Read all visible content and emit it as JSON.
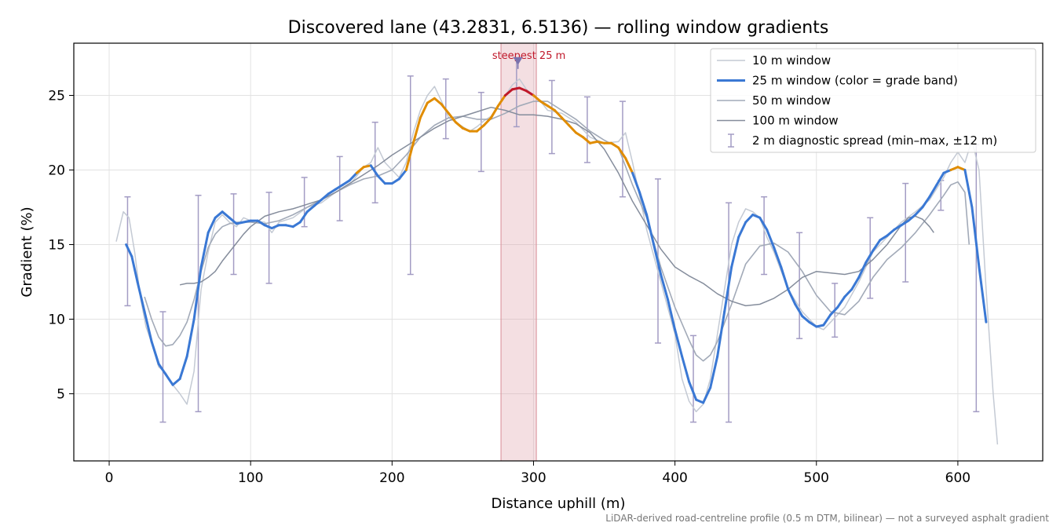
{
  "chart_data": {
    "type": "line",
    "title": "Discovered lane (43.2831, 6.5136) — rolling window gradients",
    "xlabel": "Distance uphill (m)",
    "ylabel": "Gradient (%)",
    "xlim": [
      -25,
      660
    ],
    "ylim": [
      0.5,
      28.5
    ],
    "x_ticks": [
      0,
      100,
      200,
      300,
      400,
      500,
      600
    ],
    "y_ticks": [
      5,
      10,
      15,
      20,
      25
    ],
    "grid": true,
    "legend_position": "top-right",
    "footnote": "LiDAR-derived road-centreline profile (0.5 m DTM, bilinear) — not a surveyed asphalt gradient",
    "highlight": {
      "label": "steepest 25 m",
      "x_range": [
        277,
        302
      ],
      "marker": {
        "x": 289,
        "y": 27.3
      }
    },
    "grade_band_colors": {
      "below_20": "#3a78d4",
      "20_to_25": "#e08c00",
      "above_25": "#c0182a"
    },
    "series": [
      {
        "name": "10 m window",
        "color": "#c4cad4",
        "x": [
          5,
          10,
          14,
          18,
          22,
          26,
          30,
          35,
          40,
          45,
          50,
          55,
          60,
          65,
          70,
          75,
          80,
          85,
          90,
          95,
          100,
          110,
          115,
          120,
          130,
          140,
          150,
          160,
          170,
          180,
          185,
          190,
          195,
          200,
          205,
          210,
          215,
          220,
          225,
          230,
          235,
          240,
          245,
          250,
          255,
          260,
          265,
          270,
          275,
          280,
          285,
          290,
          295,
          300,
          305,
          310,
          320,
          330,
          340,
          350,
          360,
          365,
          370,
          380,
          390,
          400,
          405,
          410,
          415,
          420,
          425,
          430,
          440,
          445,
          450,
          455,
          460,
          465,
          470,
          480,
          490,
          500,
          505,
          510,
          520,
          530,
          540,
          550,
          560,
          570,
          580,
          590,
          595,
          600,
          605,
          610,
          615,
          620,
          625,
          628
        ],
        "y": [
          15.2,
          17.2,
          16.8,
          14.5,
          11.5,
          9.5,
          8.4,
          6.8,
          6.4,
          5.6,
          5.0,
          4.3,
          6.5,
          12.0,
          14.5,
          16.5,
          17.0,
          16.5,
          16.2,
          16.8,
          16.6,
          16.5,
          15.8,
          16.5,
          16.8,
          17.5,
          17.8,
          18.5,
          19.0,
          20.2,
          20.5,
          21.5,
          20.5,
          20.0,
          19.5,
          20.5,
          22.5,
          24.0,
          25.0,
          25.6,
          24.6,
          23.5,
          23.2,
          22.9,
          22.6,
          22.9,
          23.3,
          23.6,
          24.3,
          25.0,
          25.7,
          26.1,
          25.4,
          25.0,
          24.6,
          24.0,
          23.8,
          23.2,
          22.2,
          21.8,
          21.9,
          22.5,
          20.5,
          16.0,
          12.5,
          9.0,
          6.0,
          4.5,
          3.8,
          4.3,
          6.0,
          9.0,
          15.0,
          16.5,
          17.4,
          17.2,
          16.8,
          15.5,
          14.5,
          12.0,
          10.5,
          9.5,
          9.3,
          9.8,
          10.8,
          12.5,
          14.5,
          15.5,
          16.5,
          17.2,
          18.0,
          19.5,
          20.5,
          21.2,
          20.5,
          22.0,
          20.0,
          12.0,
          5.0,
          1.6
        ]
      },
      {
        "name": "25 m window (color = grade band)",
        "color": "#3a78d4",
        "x": [
          12,
          16,
          20,
          25,
          30,
          35,
          40,
          45,
          50,
          55,
          60,
          65,
          70,
          75,
          80,
          85,
          90,
          95,
          100,
          105,
          110,
          115,
          120,
          125,
          130,
          135,
          140,
          145,
          150,
          155,
          160,
          165,
          170,
          175,
          180,
          185,
          190,
          195,
          200,
          205,
          210,
          215,
          220,
          225,
          230,
          235,
          240,
          245,
          250,
          255,
          260,
          265,
          270,
          275,
          280,
          285,
          290,
          295,
          300,
          305,
          310,
          315,
          320,
          325,
          330,
          335,
          340,
          345,
          350,
          355,
          360,
          365,
          370,
          375,
          380,
          385,
          390,
          395,
          400,
          405,
          410,
          415,
          420,
          425,
          430,
          435,
          440,
          445,
          450,
          455,
          460,
          465,
          470,
          475,
          480,
          485,
          490,
          495,
          500,
          505,
          510,
          515,
          520,
          525,
          530,
          535,
          540,
          545,
          550,
          555,
          560,
          565,
          570,
          575,
          580,
          585,
          590,
          595,
          600,
          605,
          610,
          615,
          620
        ],
        "y": [
          15.0,
          14.2,
          12.5,
          10.5,
          8.5,
          7.0,
          6.3,
          5.6,
          6.0,
          7.5,
          10.0,
          13.5,
          15.8,
          16.8,
          17.2,
          16.8,
          16.4,
          16.5,
          16.6,
          16.6,
          16.3,
          16.1,
          16.3,
          16.3,
          16.2,
          16.5,
          17.2,
          17.6,
          18.0,
          18.4,
          18.7,
          19.0,
          19.3,
          19.8,
          20.2,
          20.3,
          19.6,
          19.1,
          19.1,
          19.4,
          20.0,
          21.8,
          23.5,
          24.5,
          24.8,
          24.4,
          23.8,
          23.2,
          22.8,
          22.6,
          22.6,
          23.0,
          23.5,
          24.3,
          25.0,
          25.4,
          25.5,
          25.3,
          25.0,
          24.6,
          24.3,
          24.0,
          23.5,
          23.0,
          22.5,
          22.2,
          21.8,
          21.9,
          21.8,
          21.8,
          21.5,
          20.8,
          19.8,
          18.5,
          17.0,
          15.0,
          13.0,
          11.3,
          9.3,
          7.5,
          5.8,
          4.6,
          4.4,
          5.4,
          7.5,
          10.5,
          13.5,
          15.5,
          16.5,
          17.0,
          16.8,
          16.0,
          14.8,
          13.5,
          12.0,
          11.0,
          10.2,
          9.8,
          9.5,
          9.6,
          10.3,
          10.8,
          11.5,
          12.0,
          12.8,
          13.8,
          14.6,
          15.3,
          15.6,
          16.0,
          16.3,
          16.6,
          17.0,
          17.5,
          18.2,
          19.0,
          19.8,
          20.0,
          20.2,
          20.0,
          17.5,
          13.5,
          9.8
        ]
      },
      {
        "name": "50 m window",
        "color": "#a2aab8",
        "x": [
          25,
          30,
          35,
          40,
          45,
          50,
          55,
          60,
          65,
          70,
          75,
          80,
          85,
          90,
          95,
          100,
          110,
          120,
          130,
          140,
          150,
          160,
          170,
          180,
          190,
          200,
          210,
          220,
          230,
          240,
          250,
          260,
          270,
          280,
          290,
          300,
          310,
          320,
          330,
          340,
          350,
          360,
          370,
          380,
          390,
          400,
          410,
          415,
          420,
          425,
          430,
          440,
          450,
          460,
          470,
          480,
          490,
          500,
          510,
          520,
          530,
          540,
          550,
          560,
          570,
          580,
          590,
          595,
          600,
          605,
          608
        ],
        "y": [
          11.5,
          10.0,
          8.8,
          8.2,
          8.3,
          8.9,
          9.8,
          11.3,
          13.2,
          14.8,
          15.7,
          16.2,
          16.4,
          16.5,
          16.5,
          16.5,
          16.4,
          16.6,
          17.0,
          17.5,
          18.0,
          18.5,
          19.0,
          19.4,
          19.6,
          20.0,
          21.0,
          22.2,
          23.0,
          23.5,
          23.6,
          23.4,
          23.4,
          23.8,
          24.3,
          24.6,
          24.6,
          24.0,
          23.4,
          22.6,
          22.0,
          21.5,
          19.0,
          16.8,
          13.5,
          10.8,
          8.6,
          7.6,
          7.2,
          7.6,
          8.5,
          11.0,
          13.7,
          14.9,
          15.1,
          14.5,
          13.2,
          11.6,
          10.5,
          10.3,
          11.2,
          12.8,
          14.0,
          14.8,
          15.8,
          17.0,
          18.3,
          19.0,
          19.2,
          18.5,
          15.0
        ]
      },
      {
        "name": "100 m window",
        "color": "#858d9c",
        "x": [
          50,
          55,
          60,
          65,
          70,
          75,
          80,
          85,
          90,
          95,
          100,
          110,
          120,
          130,
          140,
          150,
          160,
          170,
          180,
          190,
          200,
          210,
          220,
          230,
          240,
          250,
          260,
          270,
          280,
          290,
          300,
          310,
          320,
          330,
          340,
          350,
          360,
          370,
          380,
          390,
          400,
          410,
          420,
          430,
          440,
          450,
          460,
          470,
          480,
          490,
          500,
          510,
          520,
          530,
          540,
          550,
          560,
          565,
          570,
          575,
          580,
          583
        ],
        "y": [
          12.3,
          12.4,
          12.4,
          12.5,
          12.8,
          13.2,
          13.9,
          14.5,
          15.1,
          15.7,
          16.2,
          16.9,
          17.2,
          17.4,
          17.7,
          18.0,
          18.5,
          19.1,
          19.7,
          20.3,
          21.0,
          21.6,
          22.2,
          22.8,
          23.3,
          23.6,
          23.9,
          24.2,
          24.0,
          23.7,
          23.7,
          23.6,
          23.4,
          23.1,
          22.5,
          21.4,
          19.8,
          17.9,
          16.3,
          14.7,
          13.5,
          12.9,
          12.4,
          11.7,
          11.2,
          10.9,
          11.0,
          11.4,
          12.0,
          12.8,
          13.2,
          13.1,
          13.0,
          13.2,
          14.0,
          15.0,
          16.3,
          16.8,
          16.9,
          16.7,
          16.2,
          15.8
        ]
      }
    ],
    "error_bars": {
      "name": "2 m diagnostic spread (min–max, ±12 m)",
      "color": "#a39cc4",
      "x": [
        13,
        38,
        63,
        88,
        113,
        138,
        163,
        188,
        213,
        238,
        263,
        288,
        313,
        338,
        363,
        388,
        413,
        438,
        463,
        488,
        513,
        538,
        563,
        588,
        613
      ],
      "low": [
        10.9,
        3.1,
        3.8,
        13.0,
        12.4,
        16.2,
        16.6,
        17.8,
        13.0,
        22.1,
        19.9,
        22.9,
        21.1,
        20.5,
        18.2,
        8.4,
        3.1,
        3.1,
        13.0,
        8.7,
        8.8,
        11.4,
        12.5,
        17.3,
        3.8
      ],
      "high": [
        18.2,
        10.5,
        18.3,
        18.4,
        18.5,
        19.5,
        20.9,
        23.2,
        26.3,
        26.1,
        25.2,
        27.5,
        26.0,
        24.9,
        24.6,
        19.4,
        8.9,
        17.8,
        18.2,
        15.8,
        12.4,
        16.8,
        19.1,
        19.3,
        21.7
      ]
    }
  }
}
